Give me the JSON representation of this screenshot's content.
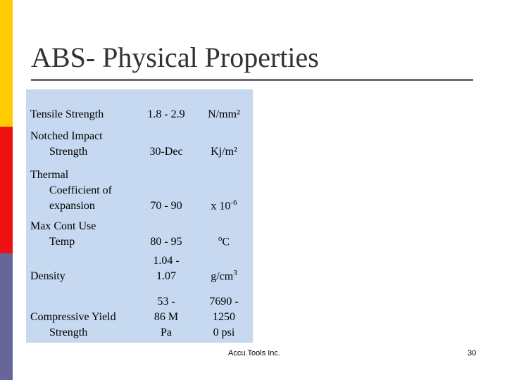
{
  "title": "ABS- Physical Properties",
  "table": {
    "rows": [
      [
        [
          "Tensile Strength"
        ],
        [
          "1.8 - 2.9"
        ],
        [
          "N/mm²"
        ]
      ],
      [
        [
          "Notched Impact",
          "Strength"
        ],
        [
          "30-Dec"
        ],
        [
          "Kj/m²"
        ]
      ],
      [
        [
          "Thermal",
          "Coefficient of",
          "expansion"
        ],
        [
          "70 - 90"
        ],
        [
          {
            "text": "x 10",
            "sup": "-6"
          }
        ]
      ],
      [
        [
          "Max Cont Use",
          "Temp"
        ],
        [
          "80 - 95"
        ],
        [
          {
            "pre": "o",
            "text": "C"
          }
        ]
      ],
      [
        [
          "Density"
        ],
        [
          "1.04 -",
          "1.07"
        ],
        [
          {
            "text": "g/cm",
            "sup": "3"
          }
        ]
      ],
      [
        [
          "Compressive Yield",
          "Strength"
        ],
        [
          "53 -",
          "86 M",
          "Pa"
        ],
        [
          "7690 -",
          "1250",
          "0 psi"
        ]
      ]
    ]
  },
  "footer": {
    "company": "Accu.Tools Inc.",
    "page": "30"
  }
}
